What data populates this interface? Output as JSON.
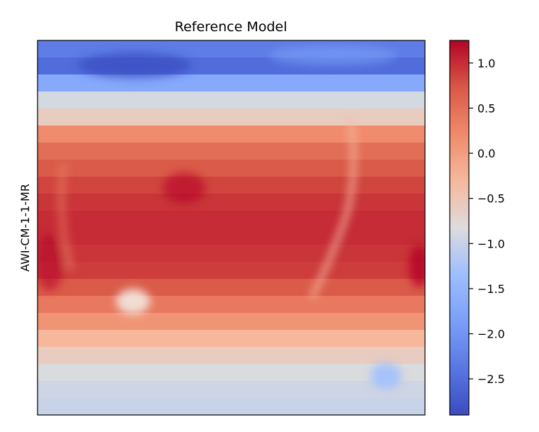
{
  "chart_data": {
    "type": "heatmap",
    "title": "Reference Model",
    "ylabel": "AWI-CM-1-1-MR",
    "xlabel": "",
    "colormap": "coolwarm",
    "colorbar": {
      "range": [
        -2.9,
        1.25
      ],
      "ticks": [
        1.0,
        0.5,
        0.0,
        -0.5,
        -1.0,
        -1.5,
        -2.0,
        -2.5
      ],
      "tick_labels": [
        "1.0",
        "0.5",
        "0.0",
        "−0.5",
        "−1.0",
        "−1.5",
        "−2.0",
        "−2.5"
      ]
    },
    "grid": false,
    "field_description_rows": {
      "row_values_top_to_bottom": [
        -2.3,
        -2.5,
        -1.7,
        -0.9,
        -0.6,
        0.2,
        0.5,
        0.7,
        0.85,
        0.95,
        1.0,
        1.0,
        0.95,
        0.9,
        0.7,
        0.4,
        0.1,
        -0.3,
        -0.6,
        -0.85,
        -0.95,
        -1.0
      ]
    }
  }
}
